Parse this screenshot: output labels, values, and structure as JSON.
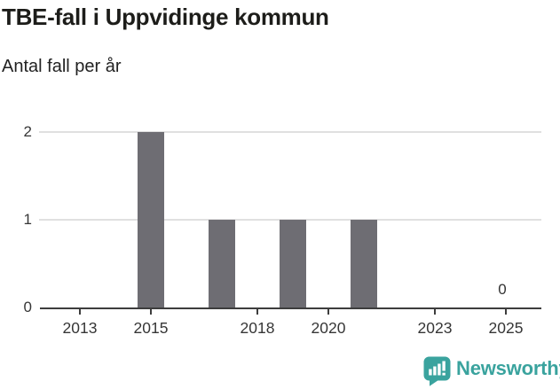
{
  "header": {
    "title": "TBE-fall i Uppvidinge kommun",
    "subtitle": "Antal fall per år"
  },
  "chart_data": {
    "type": "bar",
    "title": "TBE-fall i Uppvidinge kommun",
    "subtitle": "Antal fall per år",
    "xlabel": "",
    "ylabel": "Antal fall per år",
    "categories": [
      2012,
      2013,
      2014,
      2015,
      2016,
      2017,
      2018,
      2019,
      2020,
      2021,
      2022,
      2023,
      2024,
      2025
    ],
    "values": [
      0,
      0,
      0,
      2,
      0,
      1,
      0,
      1,
      0,
      1,
      0,
      0,
      0,
      0
    ],
    "x_ticks": [
      "2013",
      "2015",
      "2018",
      "2020",
      "2023",
      "2025"
    ],
    "y_ticks": [
      "0",
      "1",
      "2"
    ],
    "ylim": [
      0,
      2
    ],
    "xlim": [
      2011.9,
      2026
    ],
    "grid": "horizontal",
    "legend": "none",
    "bar_color": "#6e6d73",
    "gridline_color": "#e0e0e0",
    "axis_color": "#3d3d3d",
    "annotations": [
      {
        "x": 2025,
        "y": 0,
        "text": "0"
      }
    ]
  },
  "footer": {
    "brand": "Newsworthy",
    "brand_color": "#3aa39e",
    "logo_icon": "newsworthy-speech-bubble-bar-chart-icon"
  }
}
